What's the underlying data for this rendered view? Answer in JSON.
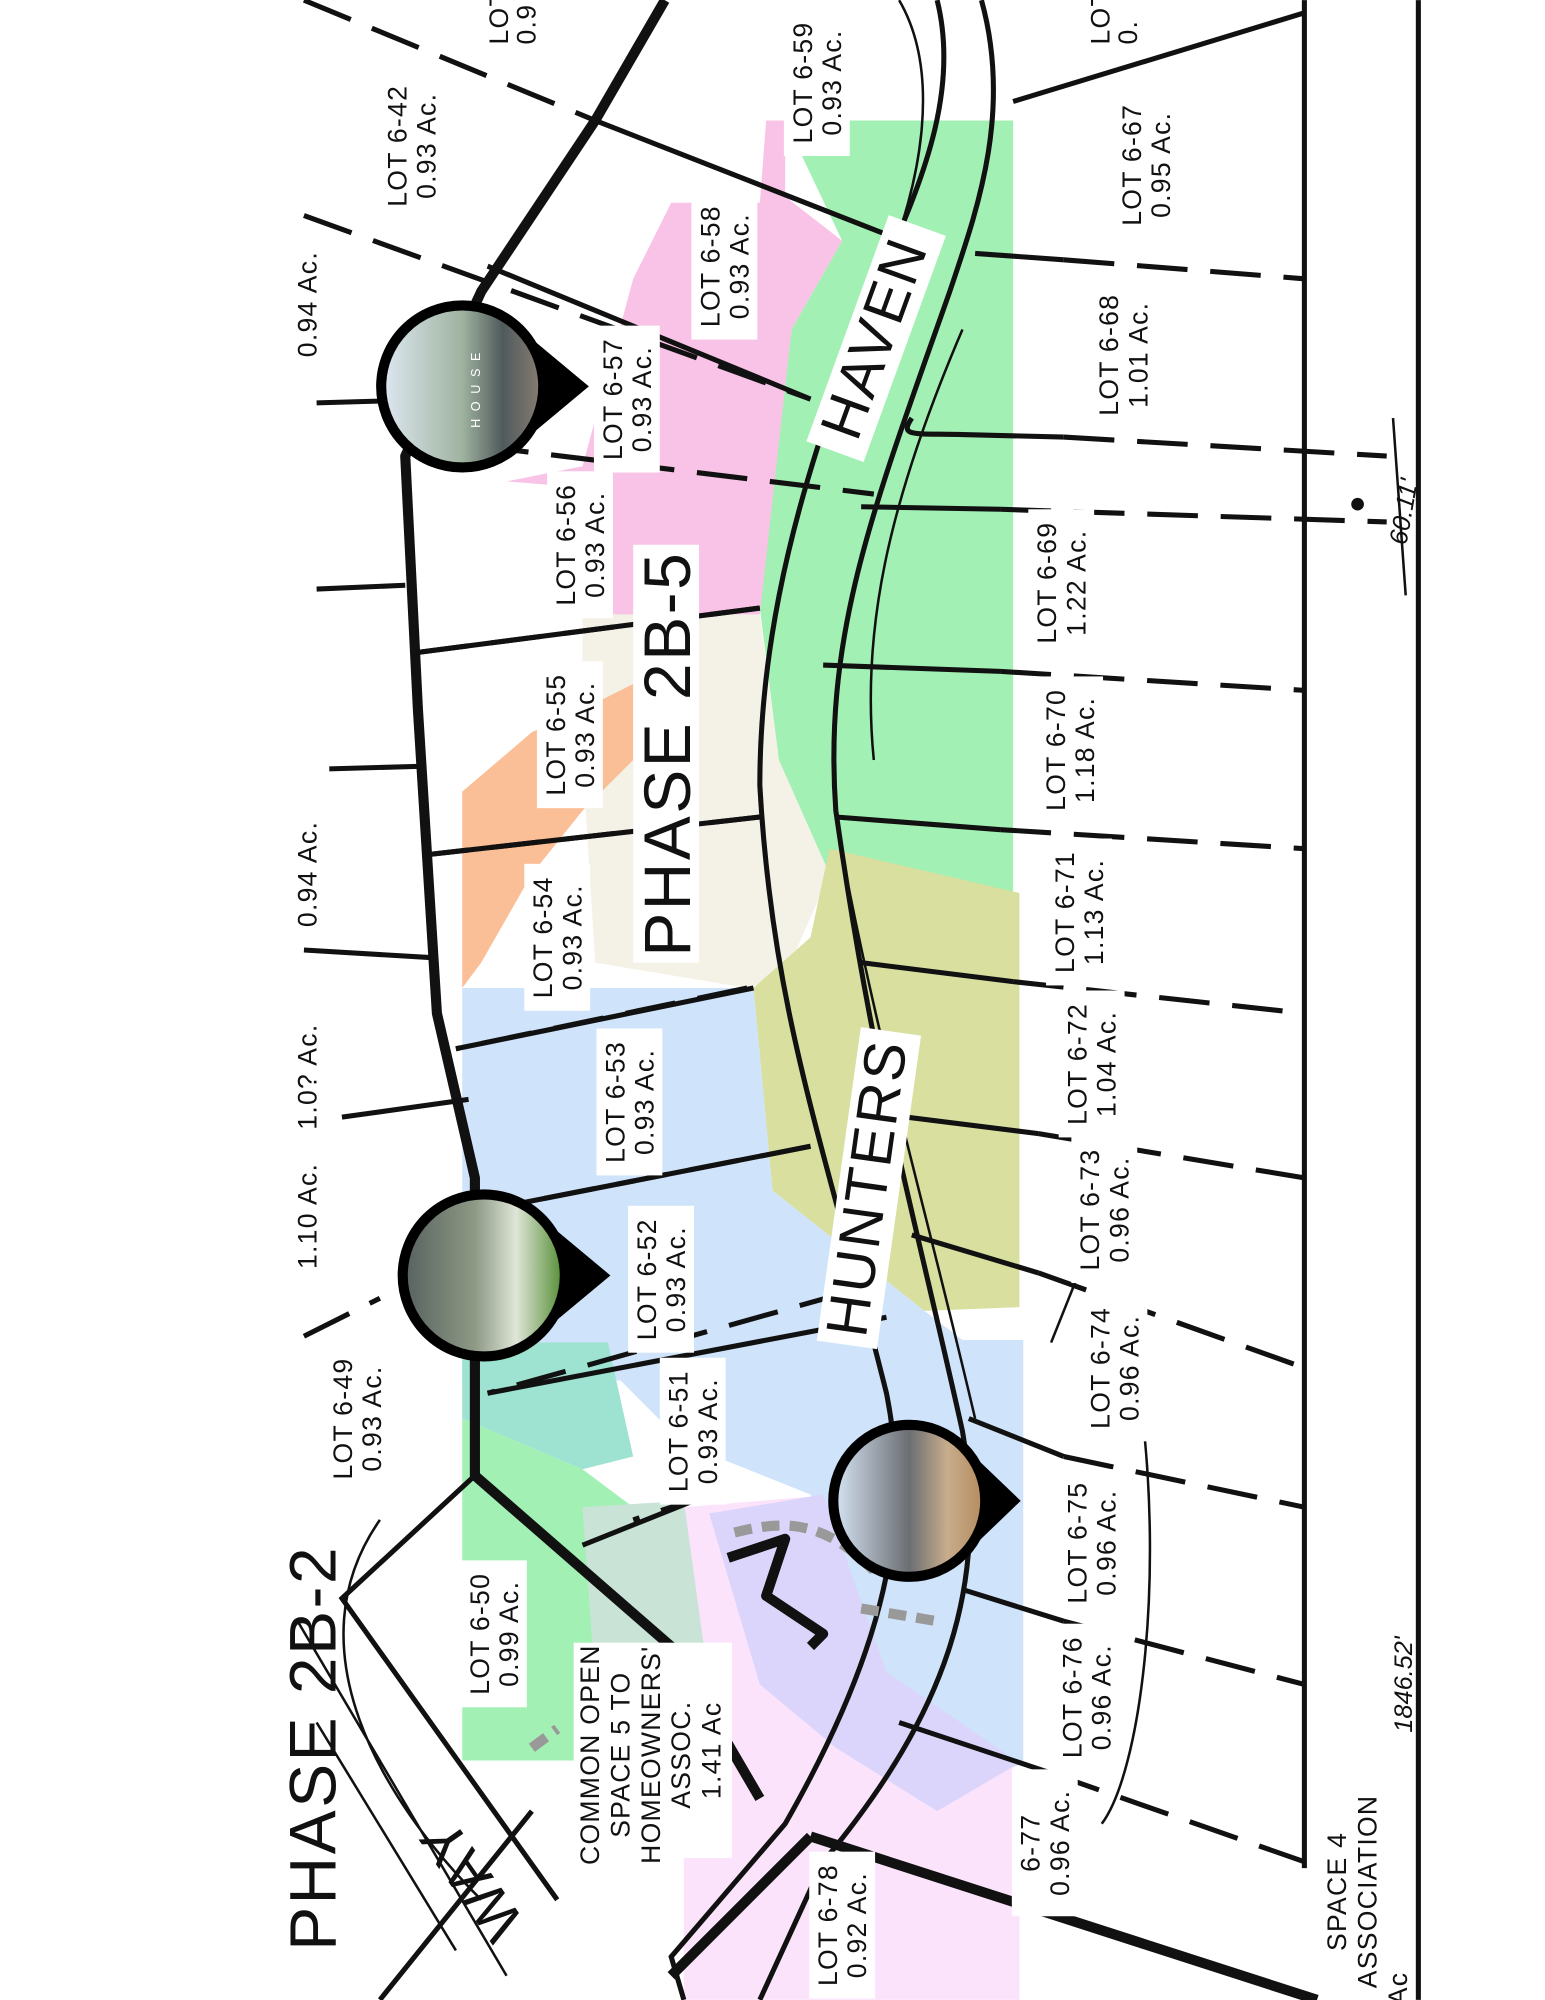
{
  "map": {
    "phase_labels": [
      "PHASE 2B-5",
      "PHASE 2B-2"
    ],
    "street_labels": [
      "HAVEN",
      "HUNTERS",
      "WAY"
    ],
    "lots": [
      {
        "name": "LOT 6-42",
        "area": "0.93 Ac."
      },
      {
        "name": "LOT 6-49",
        "area": "0.93 Ac."
      },
      {
        "name": "LOT 6-50",
        "area": "0.99 Ac."
      },
      {
        "name": "LOT 6-51",
        "area": "0.93 Ac."
      },
      {
        "name": "LOT 6-52",
        "area": "0.93 Ac."
      },
      {
        "name": "LOT 6-53",
        "area": "0.93 Ac."
      },
      {
        "name": "LOT 6-54",
        "area": "0.93 Ac."
      },
      {
        "name": "LOT 6-55",
        "area": "0.93 Ac."
      },
      {
        "name": "LOT 6-56",
        "area": "0.93 Ac."
      },
      {
        "name": "LOT 6-57",
        "area": "0.93 Ac."
      },
      {
        "name": "LOT 6-58",
        "area": "0.93 Ac."
      },
      {
        "name": "LOT 6-59",
        "area": "0.93 Ac."
      },
      {
        "name": "LOT 6-67",
        "area": "0.95 Ac."
      },
      {
        "name": "LOT 6-68",
        "area": "1.01 Ac."
      },
      {
        "name": "LOT 6-69",
        "area": "1.22 Ac."
      },
      {
        "name": "LOT 6-70",
        "area": "1.18 Ac."
      },
      {
        "name": "LOT 6-71",
        "area": "1.13 Ac."
      },
      {
        "name": "LOT 6-72",
        "area": "1.04 Ac."
      },
      {
        "name": "LOT 6-73",
        "area": "0.96 Ac."
      },
      {
        "name": "LOT 6-74",
        "area": "0.96 Ac."
      },
      {
        "name": "LOT 6-75",
        "area": "0.96 Ac."
      },
      {
        "name": "LOT 6-76",
        "area": "0.96 Ac."
      },
      {
        "name": "6-77",
        "area": "0.96 Ac."
      },
      {
        "name": "LOT 6-78",
        "area": "0.92 Ac."
      }
    ],
    "partial_labels": [
      "0.94 Ac.",
      "0.94 Ac.",
      "1.0? Ac.",
      "1.10 Ac.",
      "LOT",
      "0.9",
      "LOT",
      "0."
    ],
    "common_space": [
      "COMMON OPEN",
      "SPACE 5 TO",
      "HOMEOWNERS'",
      "ASSOC.",
      "1.41 Ac"
    ],
    "space4": [
      "SPACE 4",
      "ASSOCIATION",
      "Ac"
    ],
    "dimensions": [
      "60.11'",
      "1846.52'"
    ],
    "pins": [
      {
        "icon": "house-photo-marker",
        "caption": "HOUSE"
      },
      {
        "icon": "house-photo-marker"
      },
      {
        "icon": "house-photo-marker"
      }
    ],
    "colors": {
      "green": "#a3f0b4",
      "pink": "#f8c3e6",
      "beige": "#f4f1e6",
      "orange": "#fbbf97",
      "olive": "#d8df9f",
      "blue": "#cfe3fa",
      "teal": "#9ee2d2",
      "lavender": "#dcd5fb",
      "light_pink": "#fbe4fb"
    }
  }
}
